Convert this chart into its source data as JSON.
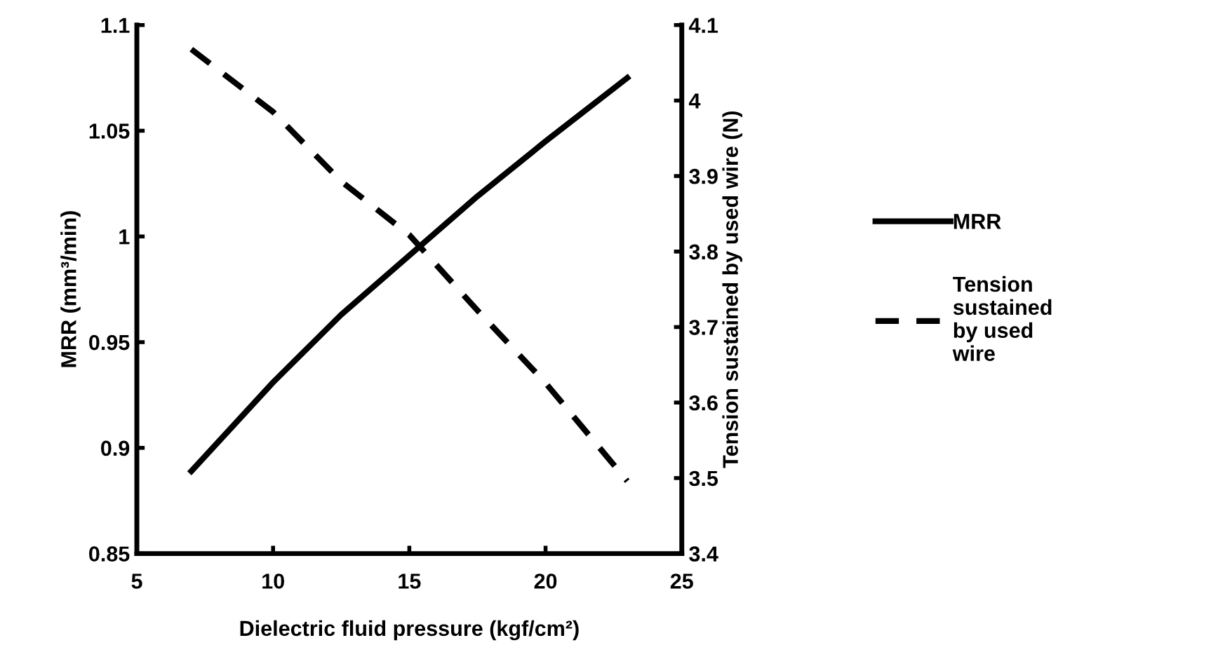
{
  "chart_data": {
    "type": "line",
    "xlabel": "Dielectric fluid pressure (kgf/cm²)",
    "ylabel": "MRR (mm³/min)",
    "y2label": "Tension sustained by used wire (N)",
    "x": [
      7,
      10,
      12.5,
      15,
      17.5,
      20,
      23
    ],
    "series": [
      {
        "name": "MRR",
        "color": "#000000",
        "line_style": "solid",
        "values": [
          0.889,
          0.931,
          0.963,
          0.991,
          1.019,
          1.045,
          1.075
        ]
      },
      {
        "name": "Tension\nsustained\nby used\nwire",
        "color": "#000000",
        "line_style": "dashed",
        "axis": "y2",
        "values": [
          4.068,
          3.985,
          3.893,
          3.822,
          3.722,
          3.626,
          3.496
        ]
      }
    ],
    "xlim": [
      5,
      25
    ],
    "xticks": [
      5,
      10,
      15,
      20,
      25
    ],
    "ylim": [
      0.85,
      1.1
    ],
    "yticks": [
      0.85,
      0.9,
      0.95,
      1,
      1.05,
      1.1
    ],
    "y2lim": [
      3.4,
      4.1
    ],
    "y2ticks": [
      3.4,
      3.5,
      3.6,
      3.7,
      3.8,
      3.9,
      4,
      4.1
    ],
    "grid": false,
    "legend": "right",
    "marker": "none"
  }
}
